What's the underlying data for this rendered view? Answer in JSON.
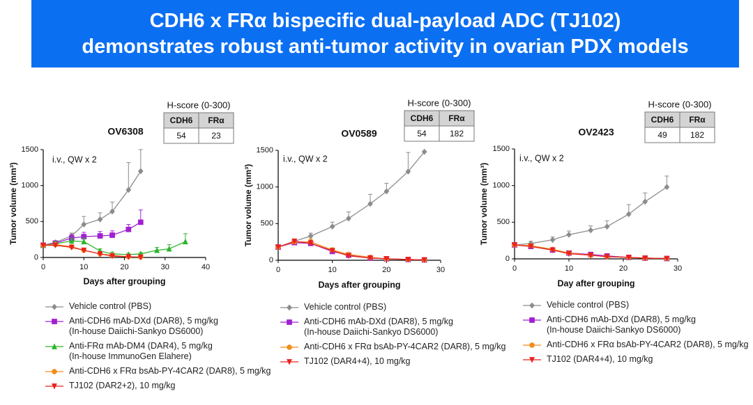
{
  "header": {
    "title_lines": [
      "CDH6 x FRα bispecific dual-payload ADC (TJ102)",
      "demonstrates robust anti-tumor activity in ovarian PDX models"
    ]
  },
  "chart_data": [
    {
      "type": "line",
      "title": "OV6308",
      "annotation": "i.v., QW x 2",
      "x_label": "Days after grouping",
      "y_label": "Tumor volume (mm³)",
      "x": [
        0,
        3,
        7,
        10,
        14,
        17,
        21,
        24,
        28,
        31,
        35
      ],
      "xlim": [
        0,
        40
      ],
      "xticks": [
        0,
        10,
        20,
        30,
        40
      ],
      "ylim": [
        0,
        1500
      ],
      "yticks": [
        0,
        500,
        1000,
        1500
      ],
      "hscore": {
        "title": "H-score (0-300)",
        "columns": [
          "CDH6",
          "FRα"
        ],
        "values": [
          54,
          23
        ]
      },
      "series": [
        {
          "name": "Vehicle control (PBS)",
          "color": "#8c8c8c",
          "marker": "diamond",
          "values": [
            170,
            210,
            300,
            460,
            530,
            640,
            940,
            1200,
            null,
            null,
            null
          ],
          "errors": [
            10,
            20,
            40,
            110,
            90,
            130,
            380,
            300,
            null,
            null,
            null
          ]
        },
        {
          "name": "Anti-CDH6 mAb-DXd (DAR8), 5 mg/kg\n(In-house Daiichi-Sankyo DS6000)",
          "color": "#a020d0",
          "marker": "square",
          "values": [
            170,
            200,
            270,
            290,
            300,
            310,
            390,
            490,
            null,
            null,
            null
          ],
          "errors": [
            20,
            30,
            50,
            60,
            60,
            60,
            70,
            170,
            null,
            null,
            null
          ]
        },
        {
          "name": "Anti-FRα mAb-DM4 (DAR4), 5 mg/kg\n(In-house ImmunoGen Elahere)",
          "color": "#2cb52c",
          "marker": "triangle",
          "values": [
            170,
            190,
            230,
            220,
            90,
            50,
            40,
            50,
            100,
            120,
            220
          ],
          "errors": [
            20,
            30,
            40,
            50,
            30,
            20,
            20,
            20,
            40,
            60,
            110
          ]
        },
        {
          "name": "Anti-CDH6 x FRα bsAb-PY-4CAR2 (DAR8), 5 mg/kg",
          "color": "#f28c1c",
          "marker": "circle",
          "values": [
            170,
            180,
            150,
            100,
            50,
            30,
            10,
            5,
            null,
            null,
            null
          ],
          "errors": [
            20,
            20,
            20,
            20,
            15,
            10,
            5,
            5,
            null,
            null,
            null
          ]
        },
        {
          "name": "TJ102 (DAR2+2), 10 mg/kg",
          "color": "#e8231f",
          "marker": "triangle-down",
          "values": [
            170,
            170,
            140,
            100,
            50,
            20,
            10,
            5,
            null,
            null,
            null
          ],
          "errors": [
            20,
            20,
            20,
            20,
            15,
            10,
            5,
            5,
            null,
            null,
            null
          ]
        }
      ]
    },
    {
      "type": "line",
      "title": "OV0589",
      "annotation": "i.v., QW x 2",
      "x_label": "Days after grouping",
      "y_label": "Tumor volume (mm³)",
      "x": [
        0,
        3,
        6,
        10,
        13,
        17,
        20,
        24,
        27
      ],
      "xlim": [
        0,
        30
      ],
      "xticks": [
        0,
        10,
        20,
        30
      ],
      "ylim": [
        0,
        1500
      ],
      "yticks": [
        0,
        500,
        1000,
        1500
      ],
      "hscore": {
        "title": "H-score (0-300)",
        "columns": [
          "CDH6",
          "FRα"
        ],
        "values": [
          54,
          182
        ]
      },
      "series": [
        {
          "name": "Vehicle control (PBS)",
          "color": "#8c8c8c",
          "marker": "diamond",
          "values": [
            180,
            260,
            330,
            460,
            570,
            770,
            940,
            1210,
            1480
          ],
          "errors": [
            20,
            30,
            40,
            60,
            90,
            130,
            110,
            260,
            null
          ]
        },
        {
          "name": "Anti-CDH6 mAb-DXd (DAR8), 5 mg/kg\n(In-house Daiichi-Sankyo DS6000)",
          "color": "#a020d0",
          "marker": "square",
          "values": [
            180,
            240,
            230,
            120,
            70,
            30,
            20,
            10,
            5
          ],
          "errors": [
            20,
            30,
            30,
            20,
            15,
            10,
            5,
            5,
            5
          ]
        },
        {
          "name": "Anti-CDH6 x FRα bsAb-PY-4CAR2 (DAR8), 5 mg/kg",
          "color": "#f28c1c",
          "marker": "circle",
          "values": [
            180,
            250,
            250,
            140,
            80,
            40,
            20,
            10,
            5
          ],
          "errors": [
            20,
            30,
            40,
            30,
            20,
            10,
            5,
            5,
            5
          ]
        },
        {
          "name": "TJ102 (DAR4+4), 10 mg/kg",
          "color": "#e8231f",
          "marker": "triangle-down",
          "values": [
            180,
            260,
            230,
            130,
            60,
            30,
            20,
            10,
            5
          ],
          "errors": [
            20,
            30,
            40,
            30,
            20,
            10,
            5,
            5,
            5
          ]
        }
      ]
    },
    {
      "type": "line",
      "title": "OV2423",
      "annotation": "i.v., QW x 2",
      "x_label": "Day after grouping",
      "y_label": "Tumor volume (mm³)",
      "x": [
        0,
        3,
        7,
        10,
        14,
        17,
        21,
        24,
        28
      ],
      "xlim": [
        0,
        30
      ],
      "xticks": [
        0,
        10,
        20,
        30
      ],
      "ylim": [
        0,
        1500
      ],
      "yticks": [
        0,
        500,
        1000,
        1500
      ],
      "hscore": {
        "title": "H-score (0-300)",
        "columns": [
          "CDH6",
          "FRα"
        ],
        "values": [
          49,
          182
        ]
      },
      "series": [
        {
          "name": "Vehicle control (PBS)",
          "color": "#8c8c8c",
          "marker": "diamond",
          "values": [
            190,
            210,
            260,
            330,
            390,
            440,
            610,
            780,
            980
          ],
          "errors": [
            20,
            30,
            40,
            50,
            60,
            80,
            130,
            120,
            150
          ]
        },
        {
          "name": "Anti-CDH6 mAb-DXd (DAR8), 5 mg/kg\n(In-house Daiichi-Sankyo DS6000)",
          "color": "#a020d0",
          "marker": "square",
          "values": [
            190,
            170,
            120,
            80,
            60,
            40,
            20,
            10,
            5
          ],
          "errors": [
            20,
            20,
            20,
            15,
            10,
            10,
            5,
            5,
            5
          ]
        },
        {
          "name": "Anti-CDH6 x FRα bsAb-PY-4CAR2 (DAR8), 5 mg/kg",
          "color": "#f28c1c",
          "marker": "circle",
          "values": [
            190,
            180,
            130,
            80,
            50,
            30,
            20,
            10,
            5
          ],
          "errors": [
            20,
            20,
            20,
            15,
            10,
            10,
            5,
            5,
            5
          ]
        },
        {
          "name": "TJ102 (DAR4+4), 10 mg/kg",
          "color": "#e8231f",
          "marker": "triangle-down",
          "values": [
            190,
            170,
            120,
            70,
            50,
            30,
            20,
            10,
            5
          ],
          "errors": [
            20,
            20,
            20,
            15,
            10,
            10,
            5,
            5,
            5
          ]
        }
      ]
    }
  ]
}
